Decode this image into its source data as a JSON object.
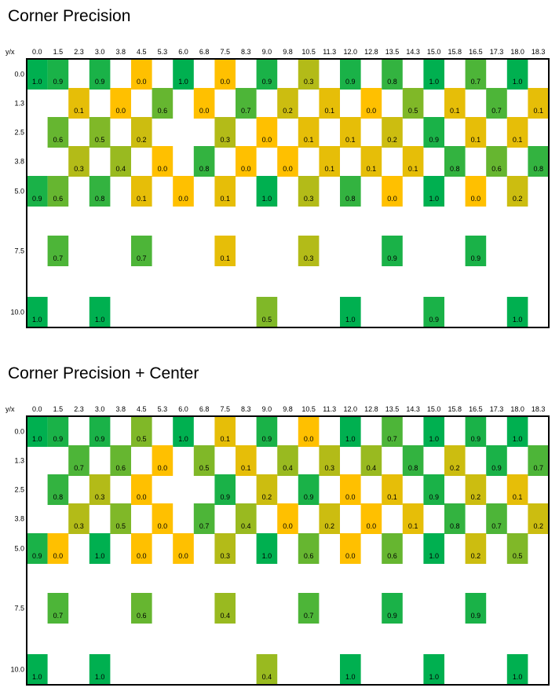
{
  "chart_data": [
    {
      "type": "heatmap",
      "title": "Corner Precision",
      "corner_label": "y/x",
      "x": [
        "0.0",
        "1.5",
        "2.3",
        "3.0",
        "3.8",
        "4.5",
        "5.3",
        "6.0",
        "6.8",
        "7.5",
        "8.3",
        "9.0",
        "9.8",
        "10.5",
        "11.3",
        "12.0",
        "12.8",
        "13.5",
        "14.3",
        "15.0",
        "15.8",
        "16.5",
        "17.3",
        "18.0",
        "18.3"
      ],
      "y": [
        "0.0",
        "1.3",
        "2.5",
        "3.8",
        "5.0",
        "7.5",
        "10.0"
      ],
      "color_scale": {
        "low": "#ffc000",
        "high": "#00b050"
      },
      "cells": [
        [
          0,
          0,
          1.0
        ],
        [
          1,
          0,
          0.9
        ],
        [
          3,
          0,
          0.9
        ],
        [
          5,
          0,
          0.0
        ],
        [
          7,
          0,
          1.0
        ],
        [
          9,
          0,
          0.0
        ],
        [
          11,
          0,
          0.9
        ],
        [
          13,
          0,
          0.3
        ],
        [
          15,
          0,
          0.9
        ],
        [
          17,
          0,
          0.8
        ],
        [
          19,
          0,
          1.0
        ],
        [
          21,
          0,
          0.7
        ],
        [
          23,
          0,
          1.0
        ],
        [
          2,
          1,
          0.1
        ],
        [
          4,
          1,
          0.0
        ],
        [
          6,
          1,
          0.6
        ],
        [
          8,
          1,
          0.0
        ],
        [
          10,
          1,
          0.7
        ],
        [
          12,
          1,
          0.2
        ],
        [
          14,
          1,
          0.1
        ],
        [
          16,
          1,
          0.0
        ],
        [
          18,
          1,
          0.5
        ],
        [
          20,
          1,
          0.1
        ],
        [
          22,
          1,
          0.7
        ],
        [
          24,
          1,
          0.1
        ],
        [
          1,
          2,
          0.6
        ],
        [
          3,
          2,
          0.5
        ],
        [
          5,
          2,
          0.2
        ],
        [
          9,
          2,
          0.3
        ],
        [
          11,
          2,
          0.0
        ],
        [
          13,
          2,
          0.1
        ],
        [
          15,
          2,
          0.1
        ],
        [
          17,
          2,
          0.2
        ],
        [
          19,
          2,
          0.9
        ],
        [
          21,
          2,
          0.1
        ],
        [
          23,
          2,
          0.1
        ],
        [
          2,
          3,
          0.3
        ],
        [
          4,
          3,
          0.4
        ],
        [
          6,
          3,
          0.0
        ],
        [
          8,
          3,
          0.8
        ],
        [
          10,
          3,
          0.0
        ],
        [
          12,
          3,
          0.0
        ],
        [
          14,
          3,
          0.1
        ],
        [
          16,
          3,
          0.1
        ],
        [
          18,
          3,
          0.1
        ],
        [
          20,
          3,
          0.8
        ],
        [
          22,
          3,
          0.6
        ],
        [
          24,
          3,
          0.8
        ],
        [
          0,
          4,
          0.9
        ],
        [
          1,
          4,
          0.6
        ],
        [
          3,
          4,
          0.8
        ],
        [
          5,
          4,
          0.1
        ],
        [
          7,
          4,
          0.0
        ],
        [
          9,
          4,
          0.1
        ],
        [
          11,
          4,
          1.0
        ],
        [
          13,
          4,
          0.3
        ],
        [
          15,
          4,
          0.8
        ],
        [
          17,
          4,
          0.0
        ],
        [
          19,
          4,
          1.0
        ],
        [
          21,
          4,
          0.0
        ],
        [
          23,
          4,
          0.2
        ],
        [
          1,
          5,
          0.7
        ],
        [
          5,
          5,
          0.7
        ],
        [
          9,
          5,
          0.1
        ],
        [
          13,
          5,
          0.3
        ],
        [
          17,
          5,
          0.9
        ],
        [
          21,
          5,
          0.9
        ],
        [
          0,
          6,
          1.0
        ],
        [
          3,
          6,
          1.0
        ],
        [
          11,
          6,
          0.5
        ],
        [
          15,
          6,
          1.0
        ],
        [
          19,
          6,
          0.9
        ],
        [
          23,
          6,
          1.0
        ]
      ]
    },
    {
      "type": "heatmap",
      "title": "Corner Precision + Center",
      "corner_label": "y/x",
      "x": [
        "0.0",
        "1.5",
        "2.3",
        "3.0",
        "3.8",
        "4.5",
        "5.3",
        "6.0",
        "6.8",
        "7.5",
        "8.3",
        "9.0",
        "9.8",
        "10.5",
        "11.3",
        "12.0",
        "12.8",
        "13.5",
        "14.3",
        "15.0",
        "15.8",
        "16.5",
        "17.3",
        "18.0",
        "18.3"
      ],
      "y": [
        "0.0",
        "1.3",
        "2.5",
        "3.8",
        "5.0",
        "7.5",
        "10.0"
      ],
      "color_scale": {
        "low": "#ffc000",
        "high": "#00b050"
      },
      "cells": [
        [
          0,
          0,
          1.0
        ],
        [
          1,
          0,
          0.9
        ],
        [
          3,
          0,
          0.9
        ],
        [
          5,
          0,
          0.5
        ],
        [
          7,
          0,
          1.0
        ],
        [
          9,
          0,
          0.1
        ],
        [
          11,
          0,
          0.9
        ],
        [
          13,
          0,
          0.0
        ],
        [
          15,
          0,
          1.0
        ],
        [
          17,
          0,
          0.7
        ],
        [
          19,
          0,
          1.0
        ],
        [
          21,
          0,
          0.9
        ],
        [
          23,
          0,
          1.0
        ],
        [
          2,
          1,
          0.7
        ],
        [
          4,
          1,
          0.6
        ],
        [
          6,
          1,
          0.0
        ],
        [
          8,
          1,
          0.5
        ],
        [
          10,
          1,
          0.1
        ],
        [
          12,
          1,
          0.4
        ],
        [
          14,
          1,
          0.3
        ],
        [
          16,
          1,
          0.4
        ],
        [
          18,
          1,
          0.8
        ],
        [
          20,
          1,
          0.2
        ],
        [
          22,
          1,
          0.9
        ],
        [
          24,
          1,
          0.7
        ],
        [
          1,
          2,
          0.8
        ],
        [
          3,
          2,
          0.3
        ],
        [
          5,
          2,
          0.0
        ],
        [
          9,
          2,
          0.9
        ],
        [
          11,
          2,
          0.2
        ],
        [
          13,
          2,
          0.9
        ],
        [
          15,
          2,
          0.0
        ],
        [
          17,
          2,
          0.1
        ],
        [
          19,
          2,
          0.9
        ],
        [
          21,
          2,
          0.2
        ],
        [
          23,
          2,
          0.1
        ],
        [
          2,
          3,
          0.3
        ],
        [
          4,
          3,
          0.5
        ],
        [
          6,
          3,
          0.0
        ],
        [
          8,
          3,
          0.7
        ],
        [
          10,
          3,
          0.4
        ],
        [
          12,
          3,
          0.0
        ],
        [
          14,
          3,
          0.2
        ],
        [
          16,
          3,
          0.0
        ],
        [
          18,
          3,
          0.1
        ],
        [
          20,
          3,
          0.8
        ],
        [
          22,
          3,
          0.7
        ],
        [
          24,
          3,
          0.2
        ],
        [
          0,
          4,
          0.9
        ],
        [
          1,
          4,
          0.0
        ],
        [
          3,
          4,
          1.0
        ],
        [
          5,
          4,
          0.0
        ],
        [
          7,
          4,
          0.0
        ],
        [
          9,
          4,
          0.3
        ],
        [
          11,
          4,
          1.0
        ],
        [
          13,
          4,
          0.6
        ],
        [
          15,
          4,
          0.0
        ],
        [
          17,
          4,
          0.6
        ],
        [
          19,
          4,
          1.0
        ],
        [
          21,
          4,
          0.2
        ],
        [
          23,
          4,
          0.5
        ],
        [
          1,
          5,
          0.7
        ],
        [
          5,
          5,
          0.6
        ],
        [
          9,
          5,
          0.4
        ],
        [
          13,
          5,
          0.7
        ],
        [
          17,
          5,
          0.9
        ],
        [
          21,
          5,
          0.9
        ],
        [
          0,
          6,
          1.0
        ],
        [
          3,
          6,
          1.0
        ],
        [
          11,
          6,
          0.4
        ],
        [
          15,
          6,
          1.0
        ],
        [
          19,
          6,
          1.0
        ],
        [
          23,
          6,
          1.0
        ]
      ]
    }
  ]
}
